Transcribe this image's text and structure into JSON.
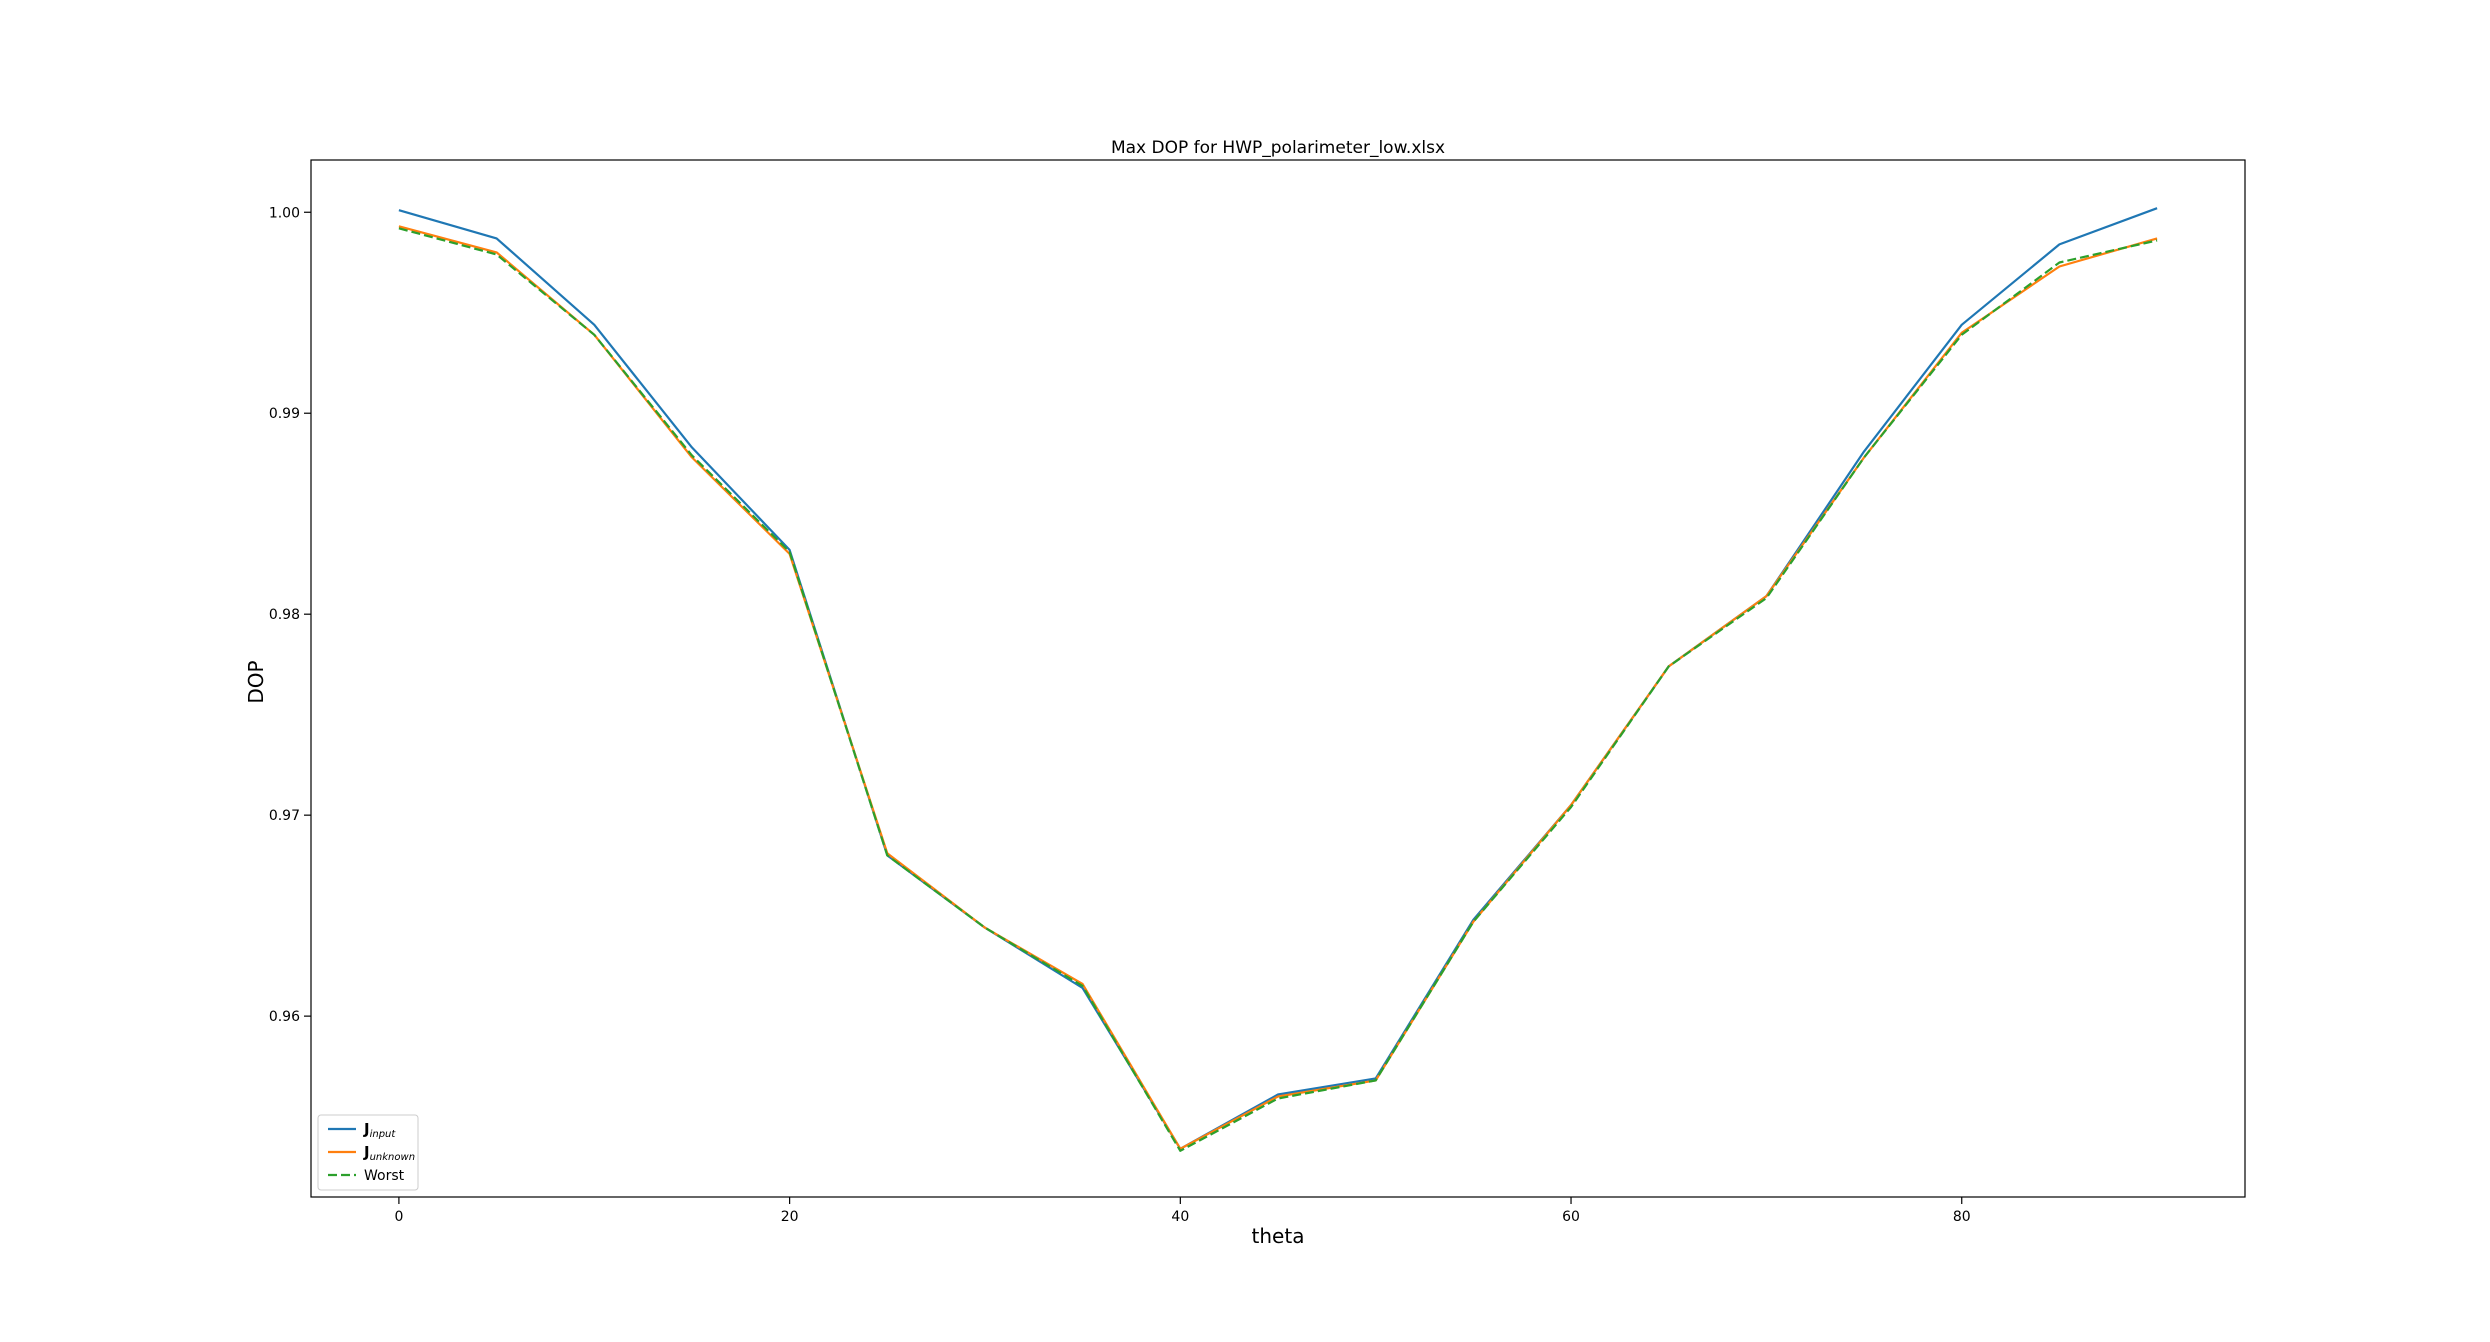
{
  "chart_data": {
    "type": "line",
    "title": "Max DOP for HWP_polarimeter_low.xlsx",
    "xlabel": "theta",
    "ylabel": "DOP",
    "xlim": [
      -4.5,
      94.5
    ],
    "ylim": [
      0.951,
      1.0026
    ],
    "xticks": [
      0,
      20,
      40,
      60,
      80
    ],
    "xtick_labels": [
      "0",
      "20",
      "40",
      "60",
      "80"
    ],
    "yticks": [
      0.96,
      0.97,
      0.98,
      0.99,
      1.0
    ],
    "ytick_labels": [
      "0.96",
      "0.97",
      "0.98",
      "0.99",
      "1.00"
    ],
    "grid": false,
    "legend_position": "lower-left",
    "x": [
      0,
      5,
      10,
      15,
      20,
      25,
      30,
      35,
      40,
      45,
      50,
      55,
      60,
      65,
      70,
      75,
      80,
      85,
      90
    ],
    "series": [
      {
        "name": "J",
        "name_sub": "input",
        "color": "#1f77b4",
        "style": "solid",
        "values": [
          1.0001,
          0.9987,
          0.9944,
          0.9883,
          0.9832,
          0.968,
          0.9644,
          0.9614,
          0.9534,
          0.9561,
          0.9569,
          0.9648,
          0.9705,
          0.9774,
          0.9809,
          0.9881,
          0.9944,
          0.9984,
          1.0002
        ]
      },
      {
        "name": "J",
        "name_sub": "unknown",
        "color": "#ff7f0e",
        "style": "solid",
        "values": [
          0.9993,
          0.998,
          0.9939,
          0.9878,
          0.983,
          0.9681,
          0.9644,
          0.9616,
          0.9534,
          0.956,
          0.9568,
          0.9647,
          0.9705,
          0.9774,
          0.9809,
          0.9878,
          0.994,
          0.9973,
          0.9987
        ]
      },
      {
        "name": "Worst",
        "color": "#2ca02c",
        "style": "dashed",
        "values": [
          0.9992,
          0.9979,
          0.9939,
          0.9879,
          0.9831,
          0.968,
          0.9644,
          0.9615,
          0.9533,
          0.9559,
          0.9568,
          0.9647,
          0.9704,
          0.9774,
          0.9808,
          0.9878,
          0.9939,
          0.9975,
          0.9986
        ]
      }
    ]
  }
}
